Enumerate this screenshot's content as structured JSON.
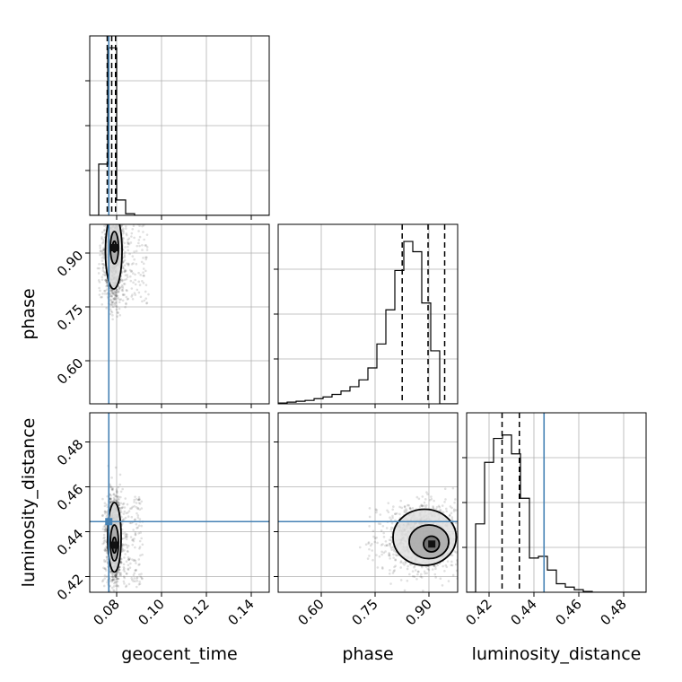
{
  "chart_data": {
    "type": "corner",
    "parameters": [
      "geocent_time",
      "phase",
      "luminosity_distance"
    ],
    "truths": {
      "geocent_time": 0.0765,
      "phase": null,
      "luminosity_distance": 0.4445
    },
    "truth_color": "#4682b4",
    "grid": true,
    "panels": [
      {
        "id": "hist-geocent_time",
        "type": "histogram",
        "parameter": "geocent_time",
        "xlim": [
          0.068,
          0.148
        ],
        "bins": [
          0.068,
          0.072,
          0.076,
          0.08,
          0.084,
          0.088,
          0.092,
          0.096,
          0.1,
          0.104,
          0.108,
          0.112,
          0.116,
          0.12,
          0.124,
          0.128,
          0.132,
          0.136,
          0.14,
          0.144,
          0.148
        ],
        "counts": [
          0,
          0.3,
          0.98,
          0.09,
          0.01,
          0,
          0,
          0,
          0,
          0,
          0,
          0,
          0,
          0,
          0,
          0,
          0,
          0,
          0,
          0
        ],
        "quantiles": [
          0.0758,
          0.0778,
          0.0795
        ],
        "xticks": [
          0.08,
          0.1,
          0.12,
          0.14
        ]
      },
      {
        "id": "hist-phase",
        "type": "histogram",
        "parameter": "phase",
        "xlim": [
          0.48,
          0.98
        ],
        "bins": [
          0.48,
          0.505,
          0.53,
          0.555,
          0.58,
          0.605,
          0.63,
          0.655,
          0.68,
          0.705,
          0.73,
          0.755,
          0.78,
          0.805,
          0.83,
          0.855,
          0.88,
          0.905,
          0.93,
          0.955,
          0.98
        ],
        "counts": [
          0.005,
          0.01,
          0.015,
          0.02,
          0.03,
          0.04,
          0.055,
          0.075,
          0.1,
          0.14,
          0.21,
          0.35,
          0.55,
          0.78,
          0.95,
          0.89,
          0.59,
          0.31,
          0.0,
          0.0
        ],
        "quantiles": [
          0.8255,
          0.8975,
          0.9438
        ],
        "xticks": [
          0.6,
          0.75,
          0.9
        ]
      },
      {
        "id": "hist-luminosity_distance",
        "type": "histogram",
        "parameter": "luminosity_distance",
        "xlim": [
          0.41,
          0.49
        ],
        "bins": [
          0.41,
          0.414,
          0.418,
          0.422,
          0.426,
          0.43,
          0.434,
          0.438,
          0.442,
          0.446,
          0.45,
          0.454,
          0.458,
          0.462,
          0.466,
          0.47,
          0.474,
          0.478,
          0.482,
          0.486,
          0.49
        ],
        "counts": [
          0,
          0.4,
          0.76,
          0.9,
          0.92,
          0.81,
          0.55,
          0.2,
          0.21,
          0.13,
          0.05,
          0.03,
          0.015,
          0.005,
          0,
          0,
          0,
          0,
          0,
          0
        ],
        "quantiles": [
          0.4258,
          0.4335,
          0.4445
        ],
        "xticks": [
          0.42,
          0.44,
          0.46,
          0.48
        ]
      },
      {
        "id": "2d-phase-vs-geocent_time",
        "type": "contour",
        "x": "geocent_time",
        "y": "phase",
        "xlim": [
          0.068,
          0.148
        ],
        "ylim": [
          0.48,
          0.98
        ],
        "mode": [
          0.079,
          0.915
        ],
        "contours": [
          {
            "center": [
              0.0787,
              0.905
            ],
            "rx": 0.0037,
            "ry": 0.105
          },
          {
            "center": [
              0.079,
              0.915
            ],
            "rx": 0.0018,
            "ry": 0.045
          },
          {
            "center": [
              0.079,
              0.918
            ],
            "rx": 0.0008,
            "ry": 0.015
          }
        ],
        "yticks": [
          0.6,
          0.75,
          0.9
        ]
      },
      {
        "id": "2d-luminosity_distance-vs-geocent_time",
        "type": "contour",
        "x": "geocent_time",
        "y": "luminosity_distance",
        "xlim": [
          0.068,
          0.148
        ],
        "ylim": [
          0.413,
          0.493
        ],
        "mode": [
          0.079,
          0.434
        ],
        "contours": [
          {
            "center": [
              0.079,
              0.4375
            ],
            "rx": 0.003,
            "ry": 0.0155
          },
          {
            "center": [
              0.079,
              0.435
            ],
            "rx": 0.0018,
            "ry": 0.008
          },
          {
            "center": [
              0.079,
              0.434
            ],
            "rx": 0.0009,
            "ry": 0.0035
          }
        ],
        "yticks": [
          0.42,
          0.44,
          0.46,
          0.48
        ]
      },
      {
        "id": "2d-luminosity_distance-vs-phase",
        "type": "contour",
        "x": "phase",
        "y": "luminosity_distance",
        "xlim": [
          0.48,
          0.98
        ],
        "ylim": [
          0.413,
          0.493
        ],
        "mode": [
          0.908,
          0.4345
        ],
        "contours": [
          {
            "center": [
              0.888,
              0.4375
            ],
            "rx": 0.088,
            "ry": 0.0125
          },
          {
            "center": [
              0.9,
              0.4355
            ],
            "rx": 0.055,
            "ry": 0.0075
          },
          {
            "center": [
              0.907,
              0.4345
            ],
            "rx": 0.022,
            "ry": 0.0035
          }
        ]
      }
    ]
  }
}
